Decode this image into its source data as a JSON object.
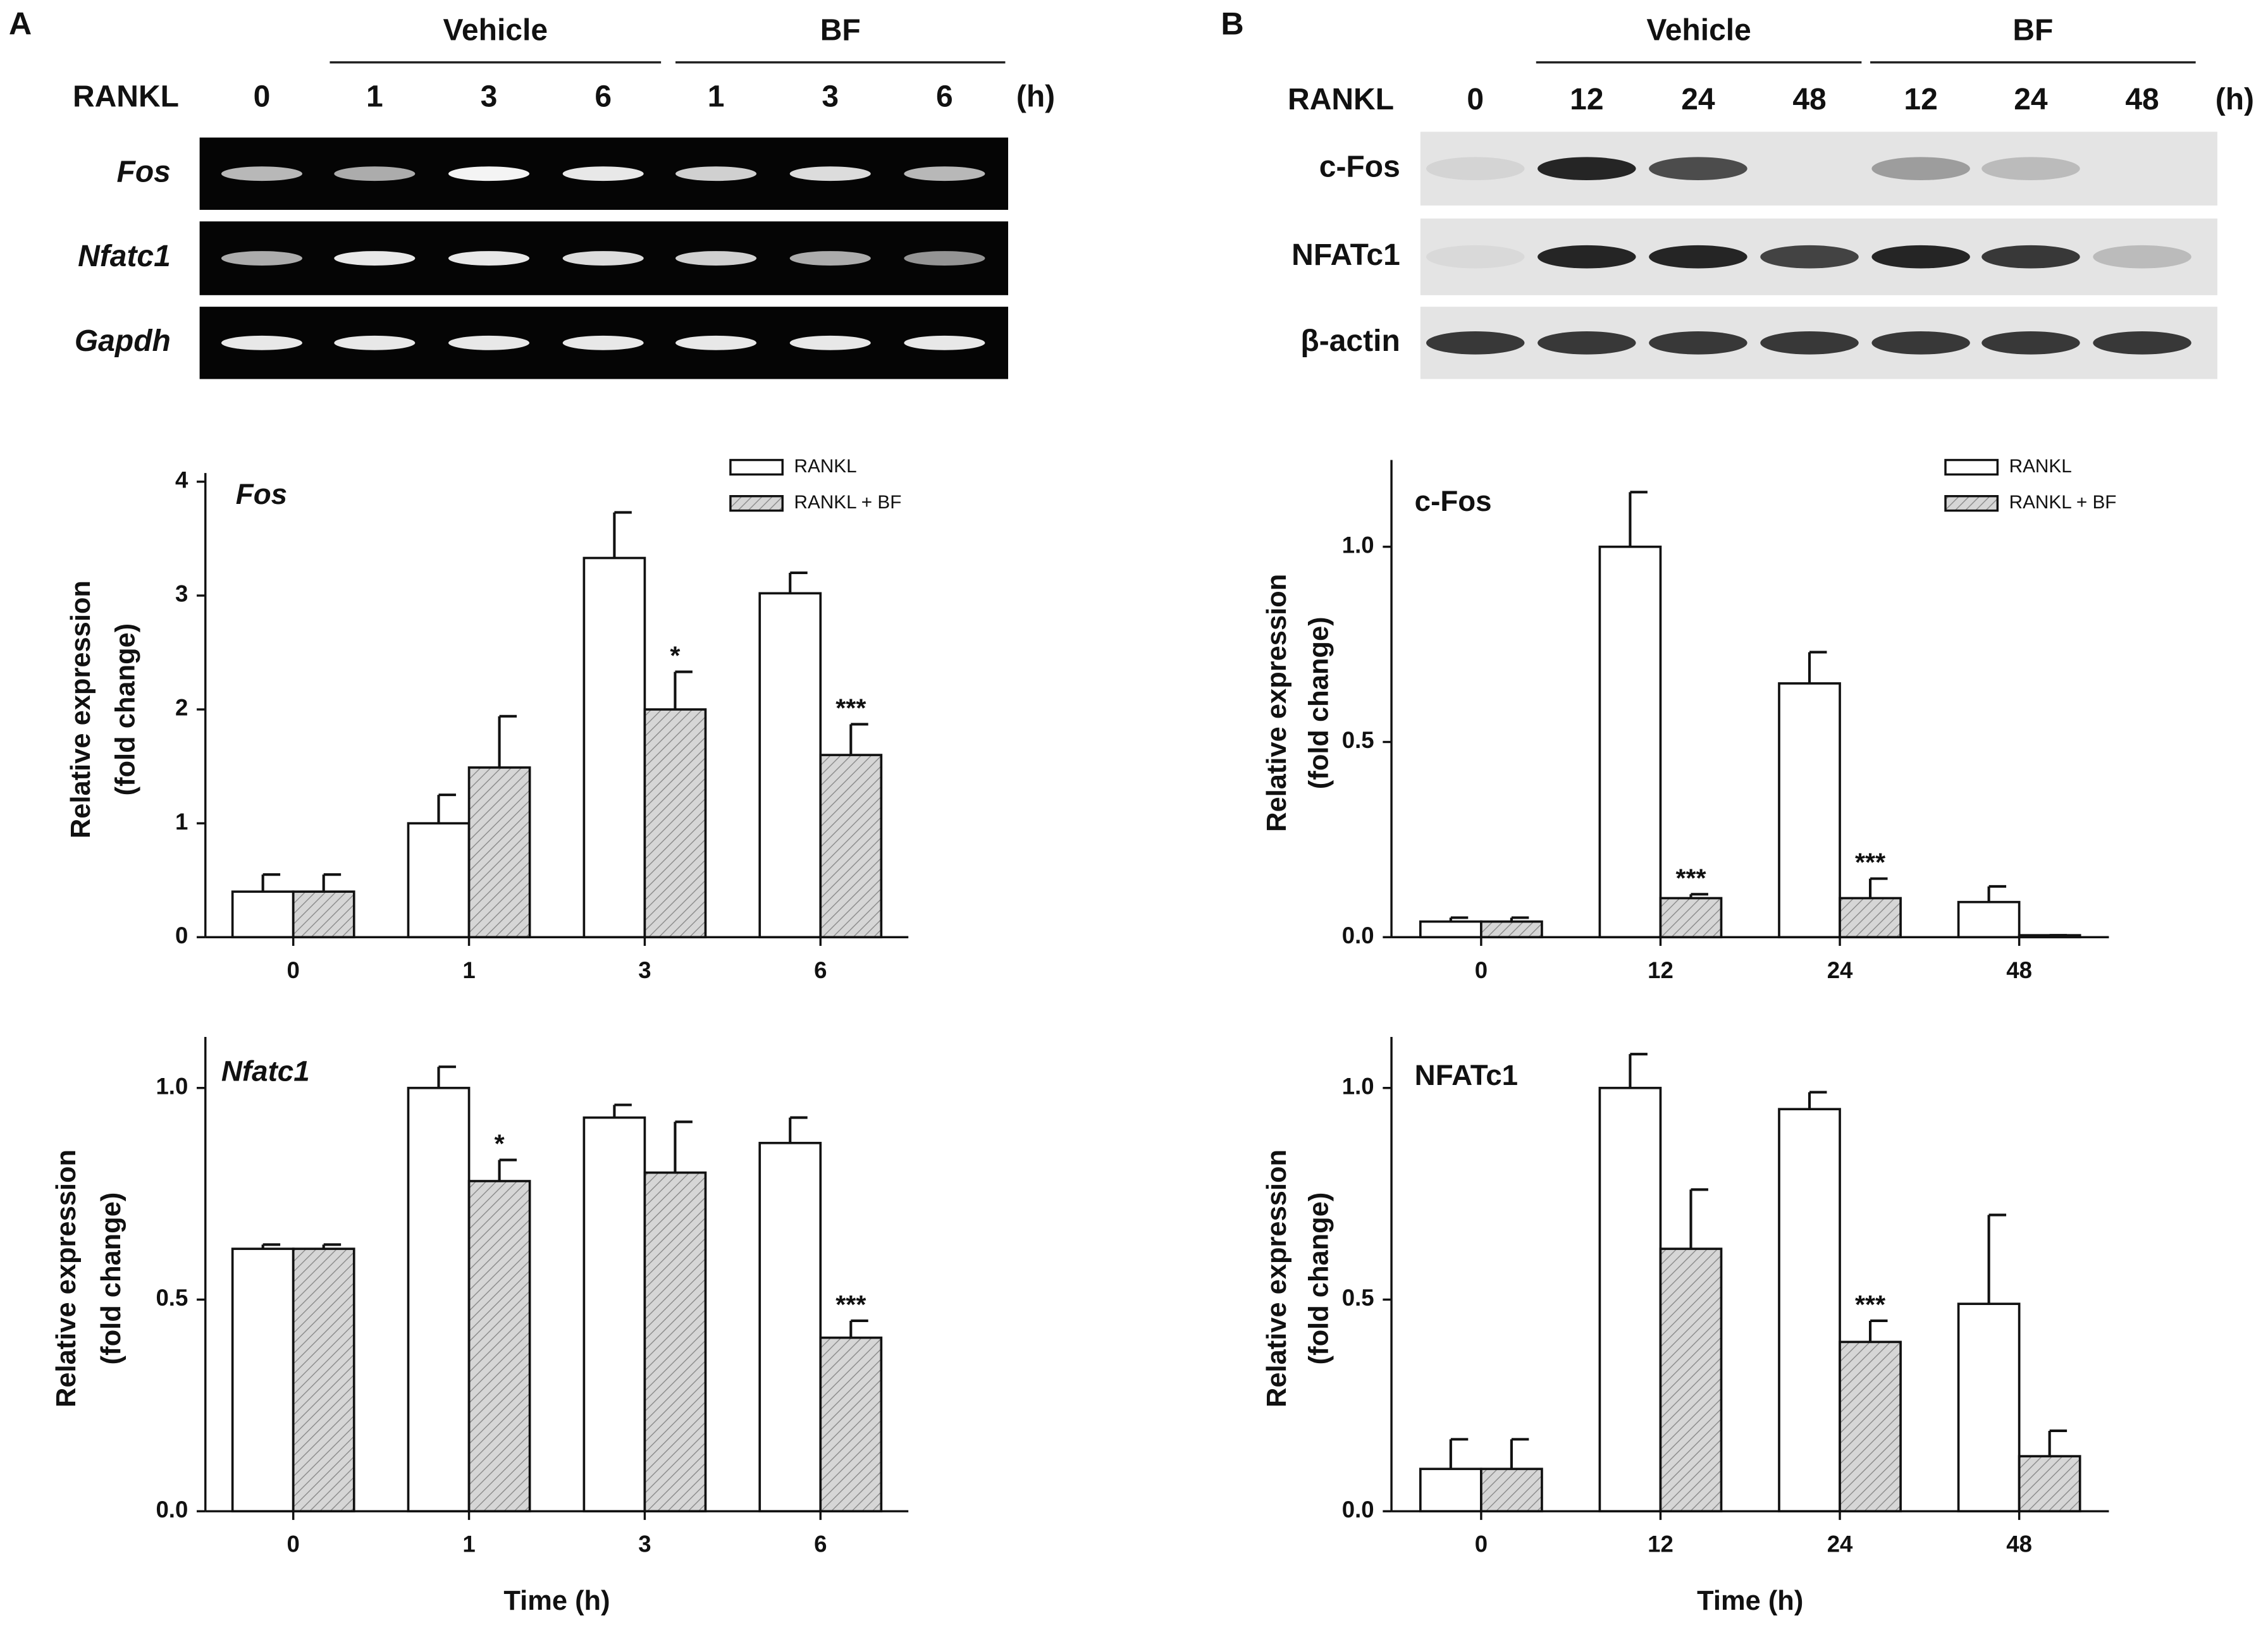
{
  "panel_a": {
    "label": "A",
    "row_header": "RANKL",
    "unit": "(h)",
    "groups": [
      "Vehicle",
      "BF"
    ],
    "lanes": [
      "0",
      "1",
      "3",
      "6",
      "1",
      "3",
      "6"
    ],
    "rows": [
      "Fos",
      "Nfatc1",
      "Gapdh"
    ]
  },
  "panel_b": {
    "label": "B",
    "row_header": "RANKL",
    "unit": "(h)",
    "groups": [
      "Vehicle",
      "BF"
    ],
    "lanes": [
      "0",
      "12",
      "24",
      "48",
      "12",
      "24",
      "48"
    ],
    "rows": [
      "c-Fos",
      "NFATc1",
      "β-actin"
    ]
  },
  "chart_data": [
    {
      "type": "bar",
      "title": "Fos",
      "ylabel": [
        "Relative expression",
        "(fold change)"
      ],
      "categories": [
        "0",
        "1",
        "3",
        "6"
      ],
      "series": [
        {
          "name": "RANKL",
          "color": "#ffffff",
          "hatch": false,
          "values": [
            0.4,
            1.0,
            3.33,
            3.02
          ],
          "errors": [
            0.15,
            0.25,
            0.4,
            0.18
          ],
          "significance": [
            null,
            null,
            null,
            null
          ]
        },
        {
          "name": "RANKL + BF",
          "color": "#d6d6d6",
          "hatch": true,
          "values": [
            0.4,
            1.49,
            2.0,
            1.6
          ],
          "errors": [
            0.15,
            0.45,
            0.33,
            0.27
          ],
          "significance": [
            null,
            null,
            "*",
            "***"
          ]
        }
      ],
      "ylim": [
        0,
        4
      ],
      "yticks": [
        0,
        1,
        2,
        3,
        4
      ],
      "legend": "upper right"
    },
    {
      "type": "bar",
      "title": "Nfatc1",
      "ylabel": [
        "Relative expression",
        "(fold change)"
      ],
      "xlabel": "Time (h)",
      "categories": [
        "0",
        "1",
        "3",
        "6"
      ],
      "series": [
        {
          "color": "#ffffff",
          "hatch": false,
          "values": [
            0.62,
            1.0,
            0.93,
            0.87
          ],
          "errors": [
            0.01,
            0.05,
            0.03,
            0.06
          ],
          "significance": [
            null,
            null,
            null,
            null
          ]
        },
        {
          "color": "#d6d6d6",
          "hatch": true,
          "values": [
            0.62,
            0.78,
            0.8,
            0.41
          ],
          "errors": [
            0.01,
            0.05,
            0.12,
            0.04
          ],
          "significance": [
            null,
            "*",
            null,
            "***"
          ]
        }
      ],
      "ylim": [
        0,
        1.1
      ],
      "yticks": [
        {
          "value": 0,
          "label": "0.0"
        },
        {
          "value": 0.5,
          "label": "0.5"
        },
        {
          "value": 1,
          "label": "1.0"
        }
      ]
    },
    {
      "type": "bar",
      "title": "c-Fos",
      "ylabel": [
        "Relative expression",
        "(fold change)"
      ],
      "categories": [
        "0",
        "12",
        "24",
        "48"
      ],
      "series": [
        {
          "name": "RANKL",
          "color": "#ffffff",
          "hatch": false,
          "values": [
            0.04,
            1.0,
            0.65,
            0.09
          ],
          "errors": [
            0.01,
            0.14,
            0.08,
            0.04
          ],
          "significance": [
            null,
            null,
            null,
            null
          ]
        },
        {
          "name": "RANKL + BF",
          "color": "#d6d6d6",
          "hatch": true,
          "values": [
            0.04,
            0.1,
            0.1,
            0.005
          ],
          "errors": [
            0.01,
            0.01,
            0.05,
            0
          ],
          "significance": [
            null,
            "***",
            "***",
            null
          ]
        }
      ],
      "ylim": [
        0,
        1.2
      ],
      "yticks": [
        {
          "value": 0,
          "label": "0.0"
        },
        {
          "value": 0.5,
          "label": "0.5"
        },
        {
          "value": 1,
          "label": "1.0"
        }
      ],
      "legend": "upper right"
    },
    {
      "type": "bar",
      "title": "NFATc1",
      "ylabel": [
        "Relative expression",
        "(fold change)"
      ],
      "xlabel": "Time (h)",
      "categories": [
        "0",
        "12",
        "24",
        "48"
      ],
      "series": [
        {
          "color": "#ffffff",
          "hatch": false,
          "values": [
            0.1,
            1.0,
            0.95,
            0.49
          ],
          "errors": [
            0.07,
            0.08,
            0.04,
            0.21
          ],
          "significance": [
            null,
            null,
            null,
            null
          ]
        },
        {
          "color": "#d6d6d6",
          "hatch": true,
          "values": [
            0.1,
            0.62,
            0.4,
            0.13
          ],
          "errors": [
            0.07,
            0.14,
            0.05,
            0.06
          ],
          "significance": [
            null,
            null,
            "***",
            null
          ]
        }
      ],
      "ylim": [
        0,
        1.1
      ],
      "yticks": [
        {
          "value": 0,
          "label": "0.0"
        },
        {
          "value": 0.5,
          "label": "0.5"
        },
        {
          "value": 1,
          "label": "1.0"
        }
      ]
    }
  ]
}
